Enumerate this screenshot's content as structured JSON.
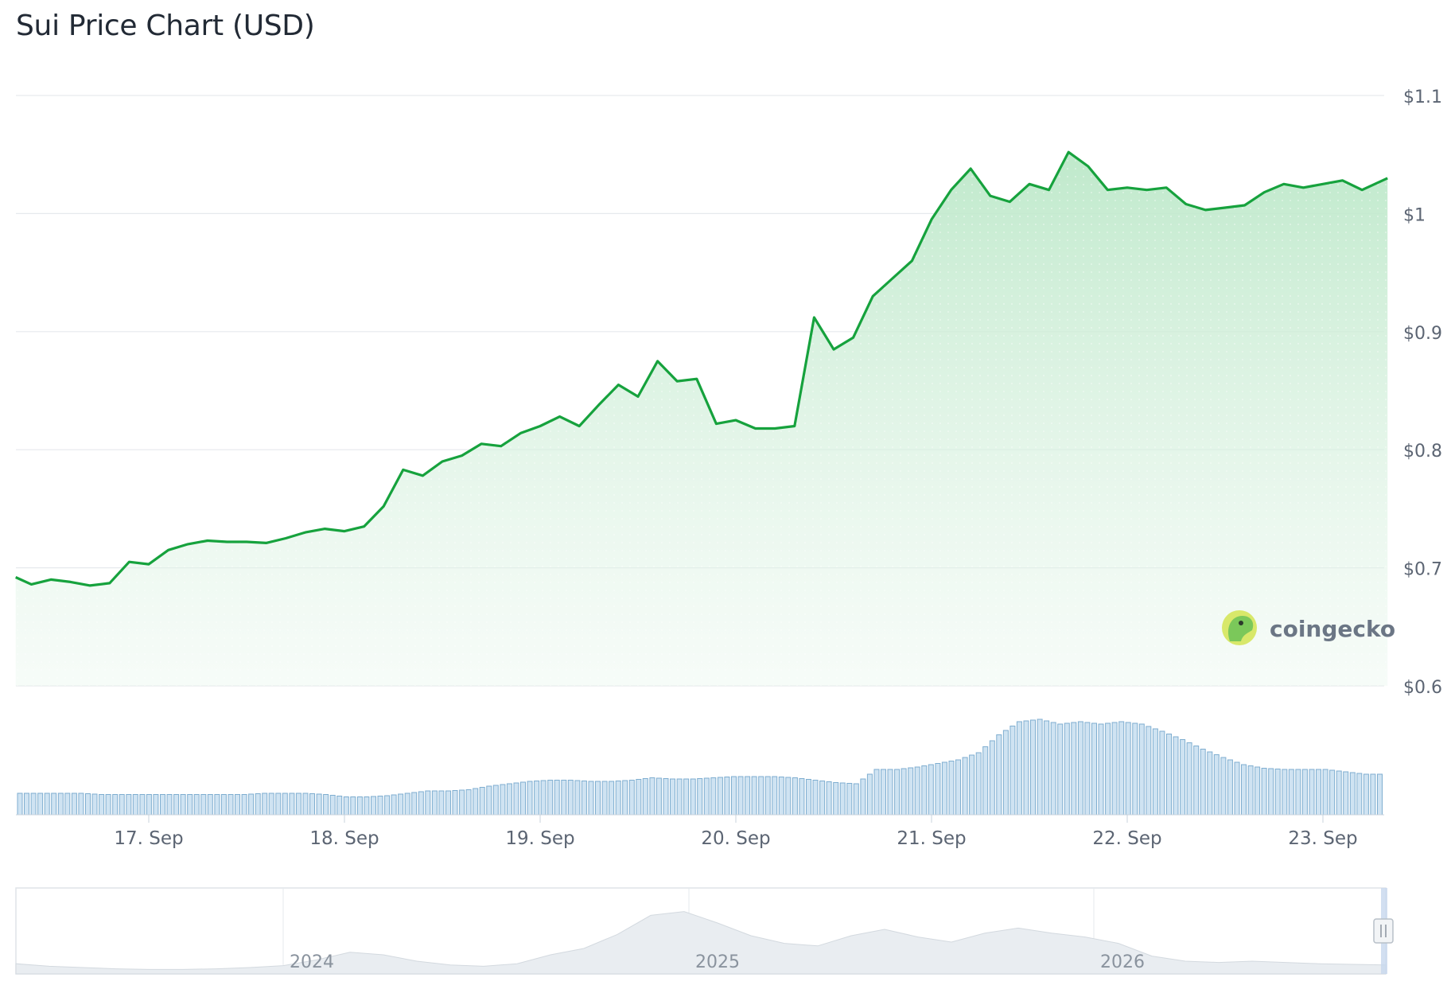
{
  "title": "Sui Price Chart (USD)",
  "brand": {
    "name": "coingecko"
  },
  "colors": {
    "line": "#16a23d",
    "area_top": "#bfe9cb",
    "volume_fill": "#cfe3f2",
    "volume_stroke": "#7faed0",
    "navigator_fill": "#e9edf1"
  },
  "chart_data": {
    "type": "area",
    "title": "Sui Price Chart (USD)",
    "xlabel": "",
    "ylabel": "",
    "ylim": [
      0.6,
      1.1
    ],
    "y_ticks": [
      "$0.6",
      "$0.7",
      "$0.8",
      "$0.9",
      "$1",
      "$1.1"
    ],
    "y_tick_values": [
      0.6,
      0.7,
      0.8,
      0.9,
      1.0,
      1.1
    ],
    "x_ticks": [
      "17. Sep",
      "18. Sep",
      "19. Sep",
      "20. Sep",
      "21. Sep",
      "22. Sep",
      "23. Sep"
    ],
    "x_tick_positions_days": [
      1,
      2,
      3,
      4,
      5,
      6,
      7
    ],
    "grid": "horizontal",
    "series": [
      {
        "x_days": [
          0.32,
          0.4,
          0.5,
          0.6,
          0.7,
          0.8,
          0.9,
          1.0,
          1.1,
          1.2,
          1.3,
          1.4,
          1.5,
          1.6,
          1.7,
          1.8,
          1.9,
          2.0,
          2.1,
          2.2,
          2.3,
          2.4,
          2.5,
          2.6,
          2.7,
          2.8,
          2.9,
          3.0,
          3.1,
          3.2,
          3.3,
          3.4,
          3.5,
          3.6,
          3.7,
          3.8,
          3.9,
          4.0,
          4.1,
          4.2,
          4.3,
          4.4,
          4.5,
          4.6,
          4.7,
          4.8,
          4.9,
          5.0,
          5.1,
          5.2,
          5.3,
          5.4,
          5.5,
          5.6,
          5.7,
          5.8,
          5.9,
          6.0,
          6.1,
          6.2,
          6.3,
          6.4,
          6.5,
          6.6,
          6.7,
          6.8,
          6.9,
          7.0,
          7.1,
          7.2,
          7.33
        ],
        "values": [
          0.692,
          0.686,
          0.69,
          0.688,
          0.685,
          0.687,
          0.705,
          0.703,
          0.715,
          0.72,
          0.723,
          0.722,
          0.722,
          0.721,
          0.725,
          0.73,
          0.733,
          0.731,
          0.735,
          0.752,
          0.783,
          0.778,
          0.79,
          0.795,
          0.805,
          0.803,
          0.814,
          0.82,
          0.828,
          0.82,
          0.838,
          0.855,
          0.845,
          0.875,
          0.858,
          0.86,
          0.822,
          0.825,
          0.818,
          0.818,
          0.82,
          0.912,
          0.885,
          0.895,
          0.93,
          0.945,
          0.96,
          0.995,
          1.02,
          1.038,
          1.015,
          1.01,
          1.025,
          1.02,
          1.052,
          1.04,
          1.02,
          1.022,
          1.02,
          1.022,
          1.008,
          1.003,
          1.005,
          1.007,
          1.018,
          1.025,
          1.022,
          1.025,
          1.028,
          1.02,
          1.03
        ]
      }
    ],
    "volume": {
      "values_relative": [
        0.18,
        0.18,
        0.18,
        0.18,
        0.17,
        0.17,
        0.17,
        0.17,
        0.17,
        0.17,
        0.17,
        0.17,
        0.18,
        0.18,
        0.18,
        0.17,
        0.15,
        0.15,
        0.16,
        0.18,
        0.2,
        0.2,
        0.21,
        0.24,
        0.26,
        0.28,
        0.29,
        0.29,
        0.28,
        0.28,
        0.29,
        0.31,
        0.3,
        0.3,
        0.31,
        0.32,
        0.32,
        0.32,
        0.31,
        0.29,
        0.27,
        0.26,
        0.38,
        0.38,
        0.4,
        0.43,
        0.46,
        0.52,
        0.67,
        0.78,
        0.8,
        0.76,
        0.78,
        0.76,
        0.78,
        0.76,
        0.7,
        0.63,
        0.55,
        0.48,
        0.42,
        0.39,
        0.38,
        0.38,
        0.38,
        0.36,
        0.34
      ]
    },
    "navigator": {
      "x_labels": [
        "2024",
        "2025",
        "2026"
      ],
      "values_relative": [
        0.16,
        0.12,
        0.1,
        0.08,
        0.07,
        0.07,
        0.08,
        0.1,
        0.13,
        0.22,
        0.34,
        0.3,
        0.2,
        0.14,
        0.12,
        0.16,
        0.3,
        0.4,
        0.62,
        0.92,
        0.98,
        0.8,
        0.6,
        0.48,
        0.44,
        0.6,
        0.7,
        0.58,
        0.5,
        0.64,
        0.72,
        0.64,
        0.58,
        0.48,
        0.28,
        0.2,
        0.18,
        0.2,
        0.18,
        0.16,
        0.15,
        0.14
      ]
    }
  }
}
